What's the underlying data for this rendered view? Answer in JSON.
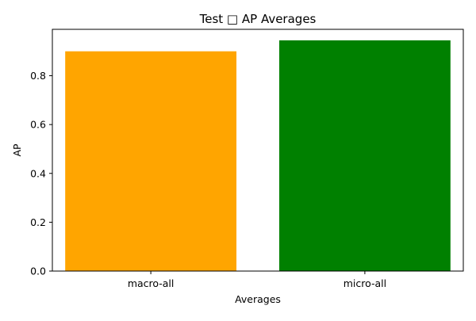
{
  "chart_data": {
    "type": "bar",
    "title": "Test □ AP Averages",
    "xlabel": "Averages",
    "ylabel": "AP",
    "categories": [
      "macro-all",
      "micro-all"
    ],
    "values": [
      0.9,
      0.945
    ],
    "colors": [
      "#ffa500",
      "#008000"
    ],
    "ylim": [
      0,
      0.99
    ],
    "yticks": [
      0.0,
      0.2,
      0.4,
      0.6,
      0.8
    ],
    "ytick_labels": [
      "0.0",
      "0.2",
      "0.4",
      "0.6",
      "0.8"
    ],
    "grid": false,
    "legend": "none"
  }
}
